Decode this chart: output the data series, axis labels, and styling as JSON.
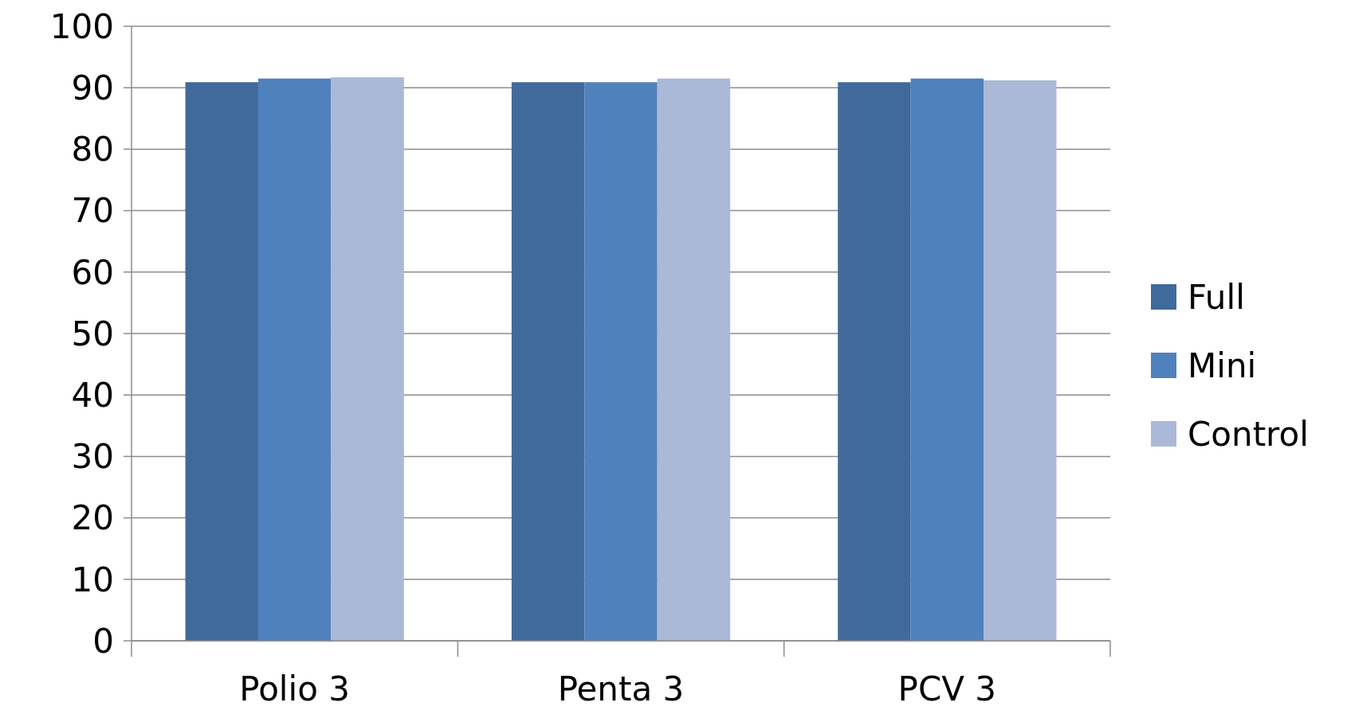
{
  "chart_data": {
    "type": "bar",
    "categories": [
      "Polio 3",
      "Penta 3",
      "PCV 3"
    ],
    "series": [
      {
        "name": "Full",
        "color": "#416a9c",
        "values": [
          90.9,
          90.9,
          90.9
        ]
      },
      {
        "name": "Mini",
        "color": "#4f81bd",
        "values": [
          91.5,
          90.9,
          91.5
        ]
      },
      {
        "name": "Control",
        "color": "#aab9d7",
        "values": [
          91.7,
          91.5,
          91.2
        ]
      }
    ],
    "ylim": [
      0,
      100
    ],
    "yticks": [
      0,
      10,
      20,
      30,
      40,
      50,
      60,
      70,
      80,
      90,
      100
    ],
    "grid": "y",
    "legend": "right"
  }
}
